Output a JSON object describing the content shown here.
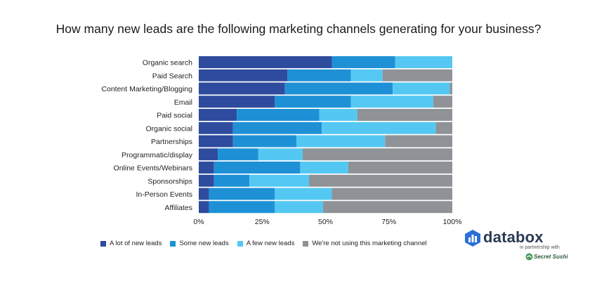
{
  "chart_data": {
    "type": "bar",
    "orientation": "horizontal",
    "stacked": "percent",
    "title": "How many new leads are the following marketing channels generating for your business?",
    "categories": [
      "Organic search",
      "Paid Search",
      "Content Marketing/Blogging",
      "Email",
      "Paid social",
      "Organic social",
      "Partnerships",
      "Programmatic/display",
      "Online Events/Webinars",
      "Sponsorships",
      "In-Person Events",
      "Affiliates"
    ],
    "series": [
      {
        "name": "A lot of new leads",
        "color": "#2f4b9d",
        "values": [
          52.5,
          35,
          34,
          30,
          15,
          13.5,
          13.5,
          7.5,
          6,
          6,
          4,
          4
        ]
      },
      {
        "name": "Some new leads",
        "color": "#1e91d6",
        "values": [
          25,
          25,
          42.5,
          30,
          32.5,
          35,
          25,
          16,
          34,
          14,
          26,
          26
        ]
      },
      {
        "name": "A few new leads",
        "color": "#54c8f2",
        "values": [
          22.5,
          12.5,
          22.5,
          32.5,
          15,
          45,
          35,
          17.5,
          19,
          23.5,
          22.5,
          19
        ]
      },
      {
        "name": "We're not using this marketing channel",
        "color": "#8f9297",
        "values": [
          0,
          27.5,
          1,
          7.5,
          37.5,
          6.5,
          26.5,
          59,
          41,
          56.5,
          47.5,
          51
        ]
      }
    ],
    "xlim": [
      0,
      100
    ],
    "xticks": [
      "0%",
      "25%",
      "50%",
      "75%",
      "100%"
    ],
    "legend_position": "bottom-left",
    "grid": false
  },
  "branding": {
    "logo_text": "databox",
    "partner_text": "in partnership with",
    "partner_name": "Secret Sushi",
    "logo_icon": "databox-bars-icon",
    "partner_icon": "secret-sushi-icon"
  }
}
